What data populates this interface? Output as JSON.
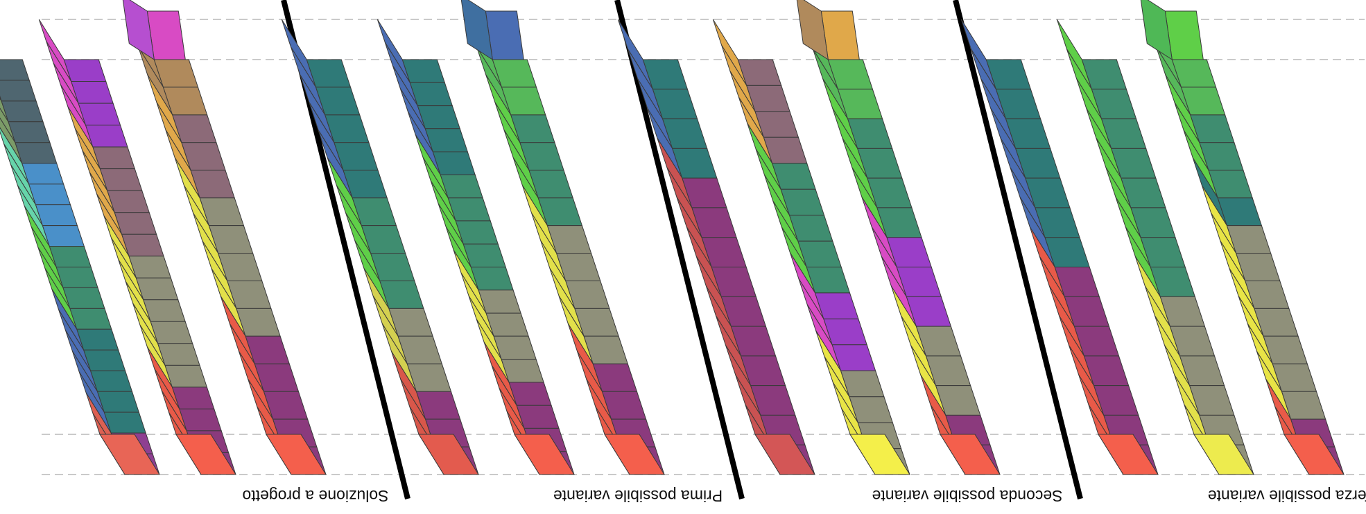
{
  "figure": {
    "panels": [
      {
        "caption": "Soluzione a progetto",
        "columns": [
          {
            "segments": [
              {
                "top": "#dd6052",
                "side": "#8e3f91",
                "heights": [
                  1,
                  1
                ]
              },
              {
                "top": "#4a6db3",
                "side": "#2f7a78",
                "heights": [
                  1,
                  1,
                  1,
                  1,
                  1
                ]
              },
              {
                "top": "#5fcf48",
                "side": "#3f8d70",
                "heights": [
                  1,
                  1,
                  1,
                  1
                ]
              },
              {
                "top": "#66d4aa",
                "side": "#4a90c9",
                "heights": [
                  1,
                  1,
                  1,
                  1
                ]
              },
              {
                "top": "#7b9b68",
                "side": "#4f6670",
                "heights": [
                  1,
                  1,
                  1,
                  1,
                  1
                ]
              }
            ]
          },
          {
            "segments": [
              {
                "top": "#e85a48",
                "side": "#8b3a7d",
                "heights": [
                  1,
                  1,
                  1,
                  1
                ]
              },
              {
                "top": "#e2e04a",
                "side": "#8f907a",
                "heights": [
                  1,
                  1,
                  1,
                  1,
                  1,
                  1
                ]
              },
              {
                "top": "#e0a84a",
                "side": "#8c6a78",
                "heights": [
                  1,
                  1,
                  1,
                  1,
                  1
                ]
              },
              {
                "top": "#d84bc4",
                "side": "#9a3ec8",
                "heights": [
                  1,
                  1,
                  1,
                  1
                ]
              }
            ]
          },
          {
            "segments": [
              {
                "top": "#e85a48",
                "side": "#8b3a7d",
                "heights": [
                  1,
                  1,
                  1,
                  1,
                  1
                ]
              },
              {
                "top": "#e2e04a",
                "side": "#8f907a",
                "heights": [
                  1,
                  1,
                  1,
                  1,
                  1
                ]
              },
              {
                "top": "#e0a84a",
                "side": "#8c6a78",
                "heights": [
                  1,
                  1,
                  1
                ]
              },
              {
                "top": "#b08a5c",
                "side": "#b08a5c",
                "heights": [
                  1,
                  1
                ]
              }
            ],
            "tail": {
              "top": "#d84bc4",
              "side": "#b64fd0"
            }
          }
        ]
      },
      {
        "caption": "Prima possibile variante",
        "columns": [
          {
            "segments": [
              {
                "top": "#d8574a",
                "side": "#8b3a7d",
                "heights": [
                  1,
                  1,
                  1
                ]
              },
              {
                "top": "#d4d050",
                "side": "#8f907a",
                "heights": [
                  1,
                  1,
                  1
                ]
              },
              {
                "top": "#5fcf48",
                "side": "#3f8d70",
                "heights": [
                  1,
                  1,
                  1,
                  1
                ]
              },
              {
                "top": "#4a6db3",
                "side": "#2f7a78",
                "heights": [
                  1,
                  1,
                  1,
                  1,
                  1
                ]
              }
            ]
          },
          {
            "segments": [
              {
                "top": "#e85a48",
                "side": "#8b3a7d",
                "heights": [
                  1,
                  1,
                  1,
                  1
                ]
              },
              {
                "top": "#e2e04a",
                "side": "#8f907a",
                "heights": [
                  1,
                  1,
                  1,
                  1
                ]
              },
              {
                "top": "#5fcf48",
                "side": "#3f8d70",
                "heights": [
                  1,
                  1,
                  1,
                  1,
                  1
                ]
              },
              {
                "top": "#4a6db3",
                "side": "#2f7a78",
                "heights": [
                  1,
                  1,
                  1,
                  1,
                  1
                ]
              }
            ]
          },
          {
            "segments": [
              {
                "top": "#e85a48",
                "side": "#8b3a7d",
                "heights": [
                  1,
                  1,
                  1,
                  1
                ]
              },
              {
                "top": "#e2e04a",
                "side": "#8f907a",
                "heights": [
                  1,
                  1,
                  1,
                  1,
                  1
                ]
              },
              {
                "top": "#5fcf48",
                "side": "#3f8d70",
                "heights": [
                  1,
                  1,
                  1,
                  1
                ]
              },
              {
                "top": "#56b85a",
                "side": "#56b85a",
                "heights": [
                  1,
                  1
                ]
              }
            ],
            "tail": {
              "top": "#4a6db3",
              "side": "#3f6fa0"
            }
          }
        ]
      },
      {
        "caption": "Seconda possibile variante",
        "columns": [
          {
            "segments": [
              {
                "top": "#c95252",
                "side": "#8b3a7d",
                "heights": [
                  1,
                  1,
                  1,
                  1,
                  1,
                  1,
                  1,
                  1,
                  1,
                  1
                ]
              },
              {
                "top": "#4a6db3",
                "side": "#2f7a78",
                "heights": [
                  1,
                  1,
                  1,
                  1
                ]
              }
            ]
          },
          {
            "segments": [
              {
                "top": "#e8e446",
                "side": "#8f907a",
                "heights": [
                  1,
                  1,
                  1,
                  1
                ]
              },
              {
                "top": "#d84bc4",
                "side": "#9a3ec8",
                "heights": [
                  1,
                  1,
                  1
                ]
              },
              {
                "top": "#5fcf48",
                "side": "#3f8d70",
                "heights": [
                  1,
                  1,
                  1,
                  1,
                  1
                ]
              },
              {
                "top": "#e0a84a",
                "side": "#8c6a78",
                "heights": [
                  1,
                  1,
                  1,
                  1
                ]
              }
            ]
          },
          {
            "segments": [
              {
                "top": "#e85a48",
                "side": "#8b3a7d",
                "heights": [
                  1,
                  1
                ]
              },
              {
                "top": "#e8e446",
                "side": "#8f907a",
                "heights": [
                  1,
                  1,
                  1
                ]
              },
              {
                "top": "#d84bc4",
                "side": "#9a3ec8",
                "heights": [
                  1,
                  1,
                  1
                ]
              },
              {
                "top": "#5fcf48",
                "side": "#3f8d70",
                "heights": [
                  1,
                  1,
                  1,
                  1
                ]
              },
              {
                "top": "#56b85a",
                "side": "#56b85a",
                "heights": [
                  1,
                  1
                ]
              }
            ],
            "tail": {
              "top": "#e0a84a",
              "side": "#b08a5c"
            }
          }
        ]
      },
      {
        "caption": "Terza possibile variante",
        "columns": [
          {
            "segments": [
              {
                "top": "#e85a48",
                "side": "#8b3a7d",
                "heights": [
                  1,
                  1,
                  1,
                  1,
                  1,
                  1,
                  1
                ]
              },
              {
                "top": "#4a6db3",
                "side": "#2f7a78",
                "heights": [
                  1,
                  1,
                  1,
                  1,
                  1,
                  1,
                  1
                ]
              }
            ]
          },
          {
            "segments": [
              {
                "top": "#e2e04a",
                "side": "#8f907a",
                "heights": [
                  1,
                  1,
                  1,
                  1,
                  1,
                  1
                ]
              },
              {
                "top": "#5fcf48",
                "side": "#3f8d70",
                "heights": [
                  1,
                  1,
                  1,
                  1,
                  1,
                  1,
                  1,
                  1
                ]
              }
            ]
          },
          {
            "segments": [
              {
                "top": "#e85a48",
                "side": "#8b3a7d",
                "heights": [
                  1,
                  1
                ]
              },
              {
                "top": "#e8e446",
                "side": "#8f907a",
                "heights": [
                  1,
                  1,
                  1,
                  1,
                  1,
                  1,
                  1
                ]
              },
              {
                "top": "#2f7a78",
                "side": "#2f7a78",
                "heights": [
                  1
                ]
              },
              {
                "top": "#5fcf48",
                "side": "#3f8d70",
                "heights": [
                  1,
                  1,
                  1
                ]
              },
              {
                "top": "#56b85a",
                "side": "#56b85a",
                "heights": [
                  1,
                  1
                ]
              }
            ],
            "tail": {
              "top": "#5fcf48",
              "side": "#4fb856"
            }
          }
        ]
      }
    ],
    "colors": {
      "outline": "#3a3a3a",
      "dash": "#b8b8b8",
      "divider": "#000000",
      "caption": "#111111"
    }
  }
}
